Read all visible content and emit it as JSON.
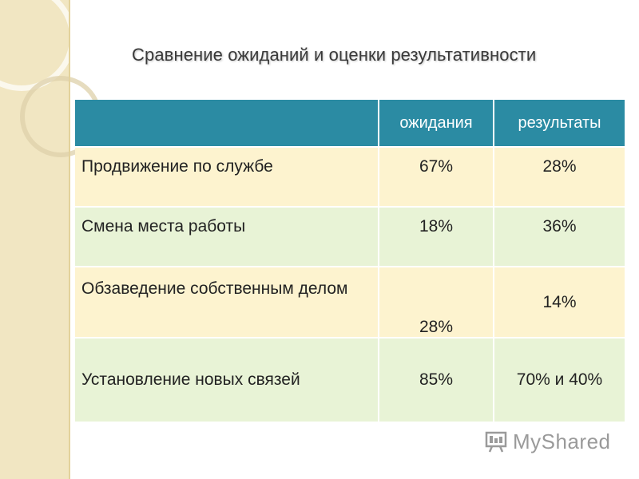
{
  "slide": {
    "title": "Сравнение ожиданий и оценки результативности"
  },
  "table": {
    "headers": [
      "",
      "ожидания",
      "результаты"
    ],
    "rows": [
      {
        "label": "Продвижение по службе",
        "expectations": "67%",
        "results": "28%"
      },
      {
        "label": "Смена места работы",
        "expectations": "18%",
        "results": "36%"
      },
      {
        "label": "Обзаведение собственным делом",
        "expectations": "28%",
        "results": "14%"
      },
      {
        "label": "Установление новых связей",
        "expectations": "85%",
        "results": "70% и 40%"
      }
    ]
  },
  "watermark": {
    "text": "MyShared",
    "icon": "presentation-board-icon"
  },
  "colors": {
    "header": "#2b8ba3",
    "row_odd": "#fdf3cf",
    "row_even": "#e8f3d6",
    "side_strip": "#f1e6c2"
  }
}
